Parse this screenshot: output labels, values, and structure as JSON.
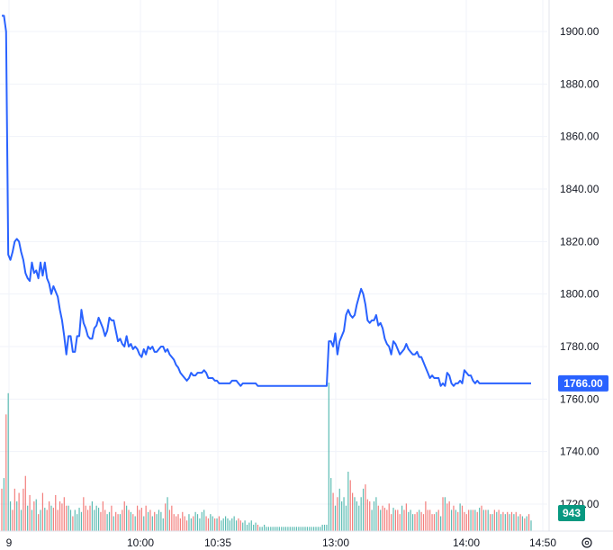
{
  "chart_data": {
    "type": "line",
    "title": "",
    "xlabel": "",
    "ylabel": "",
    "ylim": [
      1712,
      1912
    ],
    "y_ticks": [
      "1900.00",
      "1880.00",
      "1860.00",
      "1840.00",
      "1820.00",
      "1800.00",
      "1780.00",
      "1760.00",
      "1740.00",
      "1720.00"
    ],
    "x_ticks": [
      "9",
      "10:00",
      "10:35",
      "13:00",
      "14:00",
      "14:50"
    ],
    "grid": true,
    "legend": "none",
    "colors": {
      "line": "#2962ff",
      "volume_up": "#26a69a",
      "volume_down": "#ef5350",
      "price_badge": "#2962ff",
      "volume_badge": "#089981",
      "grid": "#f0f3fa",
      "axis_text": "#131722"
    },
    "last_price_label": "1766.00",
    "last_volume_label": "943",
    "series": [
      {
        "type": "price",
        "x": [
          0,
          1,
          2,
          3,
          4,
          5,
          6,
          7,
          8,
          9,
          10,
          11,
          12,
          13,
          14,
          15,
          16,
          17,
          18,
          19,
          20,
          21,
          22,
          23,
          24,
          25,
          26,
          27,
          28,
          29,
          30,
          31,
          32,
          33,
          34,
          35,
          36,
          37,
          38,
          39,
          40,
          41,
          42,
          43,
          44,
          45,
          46,
          47,
          48,
          49,
          50,
          51,
          52,
          53,
          54,
          55,
          56,
          57,
          58,
          59,
          60,
          61,
          62,
          63,
          64,
          65,
          66,
          67,
          68,
          69,
          70,
          71,
          72,
          73,
          74,
          75,
          76,
          77,
          78,
          79,
          80,
          81,
          82,
          83,
          84,
          85,
          86,
          87,
          88,
          89,
          90,
          91,
          92,
          93,
          94,
          95,
          96,
          97,
          98,
          99,
          100,
          101,
          102,
          103,
          104,
          105,
          106,
          107,
          108,
          109,
          110,
          111,
          112,
          113,
          114,
          115,
          116,
          117,
          118,
          119,
          120,
          121,
          122,
          123,
          124,
          125,
          126,
          127,
          128,
          129,
          130,
          131,
          132,
          133,
          134,
          135,
          136,
          137,
          138,
          139,
          140,
          141,
          142,
          143,
          144,
          145,
          146,
          147,
          148,
          149,
          150,
          151,
          152,
          153,
          154,
          155,
          156,
          157,
          158,
          159,
          160,
          161,
          162,
          163,
          164,
          165,
          166,
          167,
          168,
          169,
          170,
          171,
          172,
          173,
          174,
          175,
          176,
          177,
          178,
          179,
          180,
          181,
          182,
          183,
          184,
          185,
          186,
          187,
          188,
          189,
          190,
          191,
          192,
          193,
          194,
          195,
          196,
          197,
          198,
          199,
          200,
          201,
          202,
          203,
          204,
          205,
          206,
          207,
          208,
          209,
          210,
          211,
          212,
          213,
          214,
          215,
          216,
          217,
          218,
          219,
          220,
          221,
          222,
          223,
          224,
          225,
          226,
          227,
          228,
          229,
          230,
          231,
          232,
          233,
          234,
          235,
          236,
          237,
          238,
          239,
          240,
          241,
          242,
          243,
          244,
          245,
          246
        ],
        "values": [
          1906,
          1906,
          1900,
          1815,
          1813,
          1816,
          1820,
          1821,
          1820,
          1816,
          1813,
          1808,
          1806,
          1805,
          1812,
          1808,
          1809,
          1806,
          1812,
          1807,
          1812,
          1806,
          1804,
          1800,
          1803,
          1801,
          1799,
          1794,
          1790,
          1784,
          1777,
          1784,
          1784,
          1778,
          1778,
          1784,
          1784,
          1794,
          1789,
          1787,
          1784,
          1783,
          1783,
          1787,
          1788,
          1791,
          1789,
          1787,
          1784,
          1786,
          1791,
          1790,
          1790,
          1786,
          1782,
          1783,
          1781,
          1780,
          1784,
          1780,
          1781,
          1779,
          1780,
          1779,
          1777,
          1776,
          1779,
          1777,
          1780,
          1779,
          1780,
          1778,
          1778,
          1779,
          1780,
          1780,
          1778,
          1779,
          1777,
          1776,
          1775,
          1773,
          1772,
          1770,
          1769,
          1768,
          1767,
          1768,
          1770,
          1769,
          1769,
          1770,
          1770,
          1770,
          1771,
          1770,
          1768,
          1768,
          1768,
          1767,
          1767,
          1766,
          1766,
          1766,
          1766,
          1766,
          1766,
          1767,
          1767,
          1767,
          1766,
          1765,
          1766,
          1766,
          1766,
          1766,
          1766,
          1766,
          1766,
          1765,
          1765,
          1765,
          1765,
          1765,
          1765,
          1765,
          1765,
          1765,
          1765,
          1765,
          1765,
          1765,
          1765,
          1765,
          1765,
          1765,
          1765,
          1765,
          1765,
          1765,
          1765,
          1765,
          1765,
          1765,
          1765,
          1765,
          1765,
          1765,
          1765,
          1765,
          1765,
          1765,
          1782,
          1782,
          1780,
          1785,
          1777,
          1782,
          1784,
          1786,
          1792,
          1794,
          1792,
          1791,
          1792,
          1796,
          1799,
          1802,
          1800,
          1796,
          1790,
          1789,
          1790,
          1790,
          1792,
          1788,
          1789,
          1787,
          1783,
          1781,
          1780,
          1777,
          1782,
          1781,
          1779,
          1777,
          1778,
          1779,
          1781,
          1779,
          1778,
          1777,
          1777,
          1778,
          1776,
          1776,
          1774,
          1772,
          1770,
          1768,
          1769,
          1768,
          1768,
          1768,
          1765,
          1766,
          1765,
          1770,
          1769,
          1766,
          1765,
          1766,
          1766,
          1767,
          1766,
          1771,
          1770,
          1769,
          1769,
          1767,
          1766,
          1767,
          1766,
          1766,
          1766,
          1766,
          1766,
          1766,
          1766,
          1766,
          1766,
          1766,
          1766,
          1766,
          1766,
          1766,
          1766,
          1766,
          1766,
          1766,
          1766,
          1766,
          1766,
          1766,
          1766,
          1766,
          1766
        ]
      },
      {
        "type": "volume",
        "values": [
          20,
          25,
          55,
          65,
          14,
          10,
          20,
          14,
          18,
          10,
          20,
          26,
          12,
          17,
          10,
          14,
          15,
          8,
          10,
          18,
          11,
          10,
          14,
          12,
          11,
          17,
          10,
          14,
          13,
          16,
          12,
          12,
          10,
          7,
          10,
          8,
          11,
          9,
          16,
          12,
          10,
          12,
          14,
          10,
          12,
          11,
          9,
          14,
          10,
          8,
          9,
          12,
          7,
          9,
          8,
          8,
          10,
          14,
          12,
          10,
          9,
          8,
          7,
          12,
          10,
          11,
          7,
          12,
          9,
          10,
          7,
          9,
          8,
          10,
          9,
          6,
          13,
          16,
          10,
          12,
          8,
          7,
          8,
          6,
          9,
          7,
          5,
          8,
          6,
          7,
          9,
          8,
          6,
          9,
          10,
          7,
          6,
          8,
          7,
          6,
          6,
          7,
          5,
          6,
          7,
          6,
          5,
          6,
          7,
          5,
          6,
          5,
          4,
          5,
          3,
          4,
          5,
          3,
          4,
          3,
          2,
          2,
          3,
          2,
          2,
          2,
          2,
          2,
          2,
          2,
          2,
          2,
          2,
          2,
          2,
          2,
          2,
          2,
          2,
          2,
          2,
          2,
          2,
          2,
          2,
          2,
          2,
          2,
          2,
          3,
          3,
          3,
          70,
          25,
          18,
          12,
          16,
          20,
          14,
          16,
          12,
          28,
          24,
          18,
          16,
          14,
          12,
          16,
          20,
          22,
          15,
          14,
          10,
          14,
          16,
          12,
          10,
          12,
          11,
          10,
          13,
          8,
          11,
          10,
          10,
          8,
          12,
          10,
          13,
          9,
          10,
          8,
          8,
          9,
          10,
          9,
          8,
          14,
          10,
          10,
          8,
          8,
          9,
          10,
          7,
          16,
          16,
          13,
          14,
          10,
          12,
          10,
          9,
          13,
          12,
          9,
          8,
          10,
          10,
          10,
          10,
          9,
          11,
          12,
          10,
          10,
          10,
          8,
          8,
          10,
          9,
          10,
          8,
          9,
          8,
          9,
          8,
          9,
          8,
          9,
          7,
          8,
          7,
          6,
          7,
          8,
          5
        ],
        "direction": [
          "d",
          "u",
          "d",
          "u",
          "u",
          "d",
          "d",
          "u",
          "d",
          "u",
          "d",
          "d",
          "u",
          "d",
          "u",
          "d",
          "u",
          "d",
          "u",
          "d",
          "u",
          "d",
          "d",
          "u",
          "d",
          "d",
          "d",
          "d",
          "d",
          "d",
          "d",
          "u",
          "u",
          "d",
          "u",
          "u",
          "u",
          "u",
          "d",
          "d",
          "d",
          "d",
          "u",
          "u",
          "u",
          "u",
          "d",
          "d",
          "d",
          "u",
          "u",
          "d",
          "u",
          "d",
          "d",
          "u",
          "d",
          "d",
          "u",
          "d",
          "u",
          "d",
          "u",
          "d",
          "d",
          "d",
          "u",
          "d",
          "u",
          "d",
          "u",
          "d",
          "u",
          "u",
          "u",
          "u",
          "d",
          "u",
          "d",
          "d",
          "d",
          "d",
          "d",
          "d",
          "d",
          "d",
          "d",
          "u",
          "u",
          "d",
          "u",
          "u",
          "u",
          "u",
          "u",
          "d",
          "d",
          "u",
          "u",
          "d",
          "u",
          "d",
          "u",
          "u",
          "u",
          "u",
          "u",
          "u",
          "u",
          "u",
          "d",
          "d",
          "u",
          "u",
          "u",
          "u",
          "u",
          "u",
          "u",
          "d",
          "u",
          "u",
          "u",
          "u",
          "u",
          "u",
          "u",
          "u",
          "u",
          "u",
          "u",
          "u",
          "u",
          "u",
          "u",
          "u",
          "u",
          "u",
          "u",
          "u",
          "u",
          "u",
          "u",
          "u",
          "u",
          "u",
          "u",
          "u",
          "u",
          "u",
          "u",
          "u",
          "u",
          "u",
          "d",
          "u",
          "d",
          "u",
          "u",
          "u",
          "u",
          "u",
          "d",
          "d",
          "u",
          "u",
          "u",
          "u",
          "u",
          "d",
          "d",
          "d",
          "u",
          "u",
          "u",
          "d",
          "u",
          "d",
          "d",
          "d",
          "d",
          "d",
          "u",
          "d",
          "d",
          "d",
          "u",
          "d",
          "d",
          "u",
          "u",
          "u",
          "d",
          "d",
          "u",
          "d",
          "d",
          "d",
          "d",
          "d",
          "d",
          "d",
          "u",
          "d",
          "u",
          "d",
          "u",
          "d",
          "d",
          "u",
          "d",
          "u",
          "d",
          "u",
          "d",
          "d",
          "d",
          "d",
          "u",
          "d",
          "u",
          "d",
          "u",
          "d",
          "u",
          "d",
          "u",
          "d",
          "u",
          "d",
          "u",
          "d",
          "u",
          "d",
          "u",
          "d",
          "u",
          "d",
          "u",
          "d",
          "u",
          "d",
          "u",
          "d",
          "u",
          "d",
          "u",
          "d",
          "u",
          "d",
          "u"
        ]
      }
    ]
  }
}
